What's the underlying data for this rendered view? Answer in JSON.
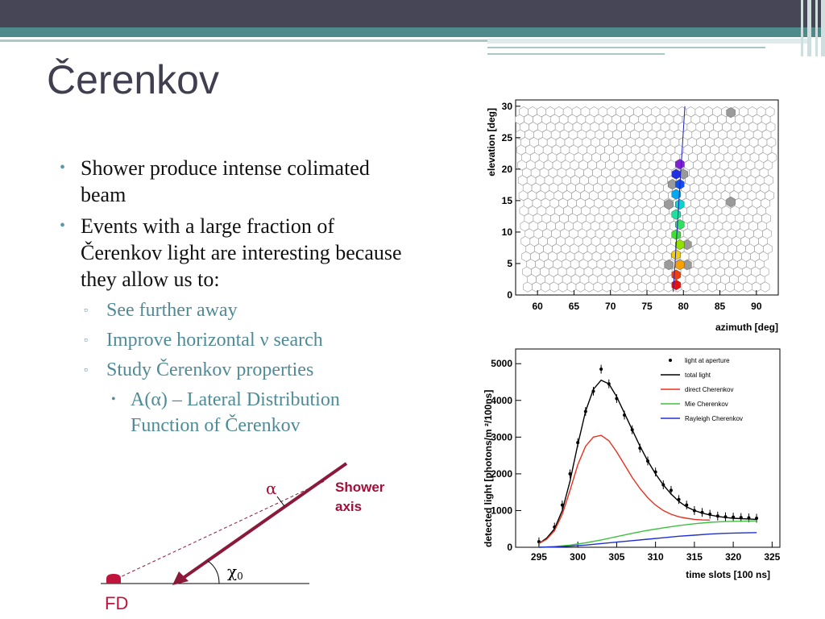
{
  "slide": {
    "title": "Čerenkov"
  },
  "bullets": {
    "b1": "Shower produce intense colimated beam",
    "b2": "Events with a large fraction of Čerenkov light are interesting because they allow us to:",
    "sub1": "See further away",
    "sub2": "Improve horizontal ν search",
    "sub3": "Study Čerenkov  properties",
    "subsub1": "A(α) – Lateral Distribution Function of Čerenkov"
  },
  "diagram": {
    "alpha": "α",
    "chi": "χ",
    "chi_sub": "0",
    "shower_axis": "Shower axis",
    "fd": "FD",
    "colors": {
      "shower": "#8b1a3a",
      "detector": "#c0143c",
      "label": "#a0103a"
    }
  },
  "chart_data": [
    {
      "type": "heatmap",
      "xlabel": "azimuth [deg]",
      "ylabel": "elevation [deg]",
      "xlim": [
        57,
        93
      ],
      "ylim": [
        0,
        31
      ],
      "xticks": [
        60,
        65,
        70,
        75,
        80,
        85,
        90
      ],
      "yticks": [
        0,
        5,
        10,
        15,
        20,
        25,
        30
      ],
      "triggered_pixels": [
        {
          "az": 79.0,
          "el": 1.6,
          "color": "#e8100a"
        },
        {
          "az": 79.0,
          "el": 3.2,
          "color": "#f04010"
        },
        {
          "az": 79.5,
          "el": 4.8,
          "color": "#f8a000"
        },
        {
          "az": 79.0,
          "el": 6.4,
          "color": "#f0d000"
        },
        {
          "az": 79.5,
          "el": 8.0,
          "color": "#90e000"
        },
        {
          "az": 79.0,
          "el": 9.6,
          "color": "#40e030"
        },
        {
          "az": 79.5,
          "el": 11.2,
          "color": "#30e060"
        },
        {
          "az": 79.0,
          "el": 12.8,
          "color": "#20e0a0"
        },
        {
          "az": 79.5,
          "el": 14.4,
          "color": "#00d8c8"
        },
        {
          "az": 79.0,
          "el": 16.0,
          "color": "#00a8f0"
        },
        {
          "az": 79.5,
          "el": 17.6,
          "color": "#1050f0"
        },
        {
          "az": 79.0,
          "el": 19.2,
          "color": "#2030e0"
        },
        {
          "az": 79.5,
          "el": 20.8,
          "color": "#8020d8"
        }
      ],
      "grey_pixels": [
        {
          "az": 80.5,
          "el": 4.8
        },
        {
          "az": 78.0,
          "el": 4.8
        },
        {
          "az": 80.5,
          "el": 8.0
        },
        {
          "az": 78.0,
          "el": 14.4
        },
        {
          "az": 80.0,
          "el": 19.2
        },
        {
          "az": 78.5,
          "el": 17.6
        },
        {
          "az": 86.5,
          "el": 29.0
        },
        {
          "az": 86.5,
          "el": 14.8
        }
      ],
      "track": {
        "az": [
          78.6,
          80.2
        ],
        "el": [
          0.5,
          30.0
        ]
      }
    },
    {
      "type": "line",
      "xlabel": "time slots [100 ns]",
      "ylabel": "detected light [photons/m  ²/100ns]",
      "xlim": [
        292,
        326
      ],
      "ylim": [
        0,
        5400
      ],
      "xticks": [
        295,
        300,
        305,
        310,
        315,
        320,
        325
      ],
      "yticks": [
        0,
        1000,
        2000,
        3000,
        4000,
        5000
      ],
      "series": [
        {
          "name": "light at aperture",
          "kind": "points",
          "color": "#000000",
          "x": [
            295,
            297,
            298,
            299,
            300,
            301,
            302,
            303,
            304,
            305,
            306,
            307,
            308,
            309,
            310,
            311,
            312,
            313,
            314,
            315,
            316,
            317,
            318,
            319,
            320,
            321,
            322,
            323
          ],
          "y": [
            150,
            550,
            1150,
            2000,
            2850,
            3700,
            4250,
            4850,
            4450,
            4050,
            3600,
            3200,
            2700,
            2350,
            2050,
            1700,
            1550,
            1300,
            1150,
            1000,
            950,
            900,
            850,
            830,
            820,
            810,
            800,
            790
          ]
        },
        {
          "name": "total light",
          "kind": "line",
          "color": "#000000",
          "x": [
            295,
            296,
            297,
            298,
            299,
            300,
            301,
            302,
            303,
            304,
            305,
            306,
            307,
            308,
            309,
            310,
            311,
            312,
            313,
            314,
            315,
            316,
            317,
            318,
            319,
            320,
            321,
            322,
            323
          ],
          "y": [
            100,
            250,
            500,
            1000,
            1800,
            2800,
            3700,
            4300,
            4550,
            4450,
            4100,
            3650,
            3200,
            2750,
            2350,
            2000,
            1700,
            1450,
            1250,
            1100,
            1000,
            930,
            880,
            840,
            810,
            790,
            780,
            770,
            760
          ]
        },
        {
          "name": "direct Cherenkov",
          "kind": "line",
          "color": "#e83020",
          "x": [
            295,
            296,
            297,
            298,
            299,
            300,
            301,
            302,
            303,
            304,
            305,
            306,
            307,
            308,
            309,
            310,
            311,
            312,
            313,
            314,
            315,
            316,
            317
          ],
          "y": [
            100,
            220,
            450,
            900,
            1550,
            2250,
            2750,
            3000,
            3050,
            2900,
            2600,
            2250,
            1900,
            1600,
            1350,
            1150,
            1000,
            900,
            830,
            790,
            760,
            745,
            740
          ]
        },
        {
          "name": "Mie Cherenkov",
          "kind": "line",
          "color": "#40c040",
          "x": [
            295,
            297,
            299,
            301,
            303,
            305,
            307,
            309,
            311,
            313,
            315,
            317,
            319,
            321,
            323
          ],
          "y": [
            0,
            20,
            60,
            120,
            200,
            290,
            380,
            460,
            530,
            590,
            640,
            680,
            700,
            710,
            720
          ]
        },
        {
          "name": "Rayleigh Cherenkov",
          "kind": "line",
          "color": "#2030d0",
          "x": [
            295,
            297,
            299,
            301,
            303,
            305,
            307,
            309,
            311,
            313,
            315,
            317,
            319,
            321,
            323
          ],
          "y": [
            0,
            10,
            30,
            60,
            100,
            140,
            180,
            220,
            260,
            300,
            330,
            360,
            380,
            390,
            400
          ]
        }
      ],
      "legend_position": "top-right"
    }
  ]
}
